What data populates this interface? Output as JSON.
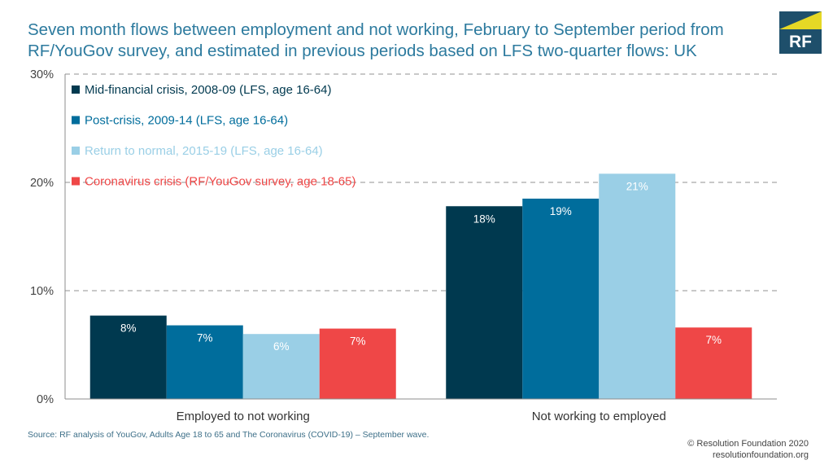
{
  "title": "Seven month flows between employment and not working, February to September period from RF/YouGov survey, and estimated in previous periods based on LFS two-quarter flows: UK",
  "logo": {
    "text": "RF",
    "colors": {
      "box": "#1e4f6b",
      "accent": "#e5d825"
    }
  },
  "source": "Source: RF analysis of YouGov, Adults Age 18 to 65 and The Coronavirus (COVID-19) – September wave.",
  "footer": {
    "line1": "© Resolution Foundation 2020",
    "line2": "resolutionfoundation.org"
  },
  "chart_data": {
    "type": "bar",
    "categories": [
      "Employed to not working",
      "Not working to employed"
    ],
    "series": [
      {
        "name": "Mid-financial crisis, 2008-09 (LFS, age 16-64)",
        "values": [
          7.7,
          17.8
        ],
        "labels": [
          "8%",
          "18%"
        ],
        "color": "#00394f"
      },
      {
        "name": "Post-crisis, 2009-14 (LFS, age 16-64)",
        "values": [
          6.8,
          18.5
        ],
        "labels": [
          "7%",
          "19%"
        ],
        "color": "#006d9c"
      },
      {
        "name": "Return to normal, 2015-19 (LFS, age 16-64)",
        "values": [
          6.0,
          20.8
        ],
        "labels": [
          "6%",
          "21%"
        ],
        "color": "#9acfe6"
      },
      {
        "name": "Coronavirus crisis (RF/YouGov survey, age 18-65)",
        "values": [
          6.5,
          6.6
        ],
        "labels": [
          "7%",
          "7%"
        ],
        "color": "#ef4747"
      }
    ],
    "y_ticks": [
      "0%",
      "10%",
      "20%",
      "30%"
    ],
    "ylim": [
      0,
      30
    ],
    "grid": true,
    "legend_position": "top-left"
  }
}
